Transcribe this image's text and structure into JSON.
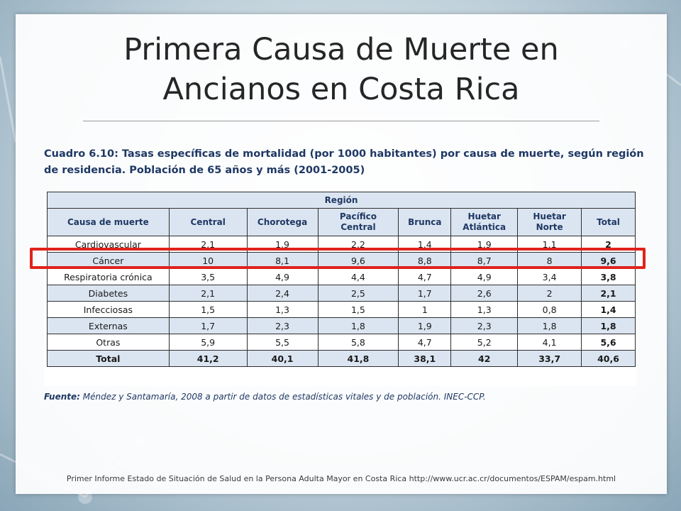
{
  "slide": {
    "title_line1": "Primera Causa de Muerte en",
    "title_line2": "Ancianos en Costa Rica",
    "caption_line1": "Cuadro 6.10: Tasas específicas de mortalidad (por 1000 habitantes) por causa de muerte, según región",
    "caption_line2": "de residencia. Población de 65 años y más (2001-2005)",
    "source_label": "Fuente:",
    "source_text": " Méndez y Santamaría, 2008 a partir de datos de estadísticas vitales y de población. INEC-CCP.",
    "footer": "Primer Informe Estado de Situación de Salud en la Persona Adulta Mayor en Costa Rica http://www.ucr.ac.cr/documentos/ESPAM/espam.html"
  },
  "table": {
    "region_header": "Región",
    "columns": [
      "Causa de muerte",
      "Central",
      "Chorotega",
      "Pacífico Central",
      "Brunca",
      "Huetar Atlántica",
      "Huetar Norte",
      "Total"
    ],
    "rows": [
      [
        "Cardiovascular",
        "2,1",
        "1,9",
        "2,2",
        "1,4",
        "1,9",
        "1,1",
        "2"
      ],
      [
        "Cáncer",
        "10",
        "8,1",
        "9,6",
        "8,8",
        "8,7",
        "8",
        "9,6"
      ],
      [
        "Respiratoria crónica",
        "3,5",
        "4,9",
        "4,4",
        "4,7",
        "4,9",
        "3,4",
        "3,8"
      ],
      [
        "Diabetes",
        "2,1",
        "2,4",
        "2,5",
        "1,7",
        "2,6",
        "2",
        "2,1"
      ],
      [
        "Infecciosas",
        "1,5",
        "1,3",
        "1,5",
        "1",
        "1,3",
        "0,8",
        "1,4"
      ],
      [
        "Externas",
        "1,7",
        "2,3",
        "1,8",
        "1,9",
        "2,3",
        "1,8",
        "1,8"
      ],
      [
        "Otras",
        "5,9",
        "5,5",
        "5,8",
        "4,7",
        "5,2",
        "4,1",
        "5,6"
      ]
    ],
    "total_row": [
      "Total",
      "41,2",
      "40,1",
      "41,8",
      "38,1",
      "42",
      "33,7",
      "40,6"
    ]
  },
  "colors": {
    "highlight": "#e0231b",
    "header_fill": "#dbe5f1",
    "text_blue": "#1f3864"
  }
}
